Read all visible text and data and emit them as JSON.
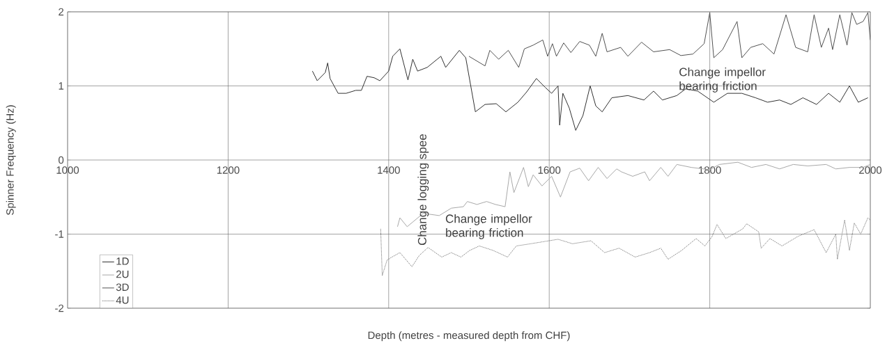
{
  "chart_data": {
    "type": "line",
    "xlabel": "Depth (metres - measured depth from CHF)",
    "ylabel": "Spinner Frequency (Hz)",
    "xlim": [
      1000,
      2000
    ],
    "ylim": [
      -2,
      2
    ],
    "xticks": [
      1000,
      1200,
      1400,
      1600,
      1800,
      2000
    ],
    "yticks": [
      -2,
      -1,
      0,
      1,
      2
    ],
    "grid": true,
    "legend": "bottom left",
    "marker": "none",
    "annotations": [
      "Change impellor bearing friction",
      "Change impellor bearing friction",
      "Change logging spee"
    ],
    "series": [
      {
        "name": "1D",
        "color": "#303030",
        "line_style": "solid",
        "x": [
          1305,
          1311,
          1321,
          1324,
          1327,
          1337,
          1347,
          1359,
          1366,
          1373,
          1382,
          1389,
          1400,
          1405,
          1414,
          1424,
          1430,
          1436,
          1448,
          1465,
          1471,
          1488,
          1496,
          1508,
          1520,
          1534,
          1546,
          1561,
          1572,
          1584,
          1595,
          1603,
          1611,
          1613,
          1617,
          1625,
          1633,
          1642,
          1651,
          1658,
          1666,
          1678,
          1698,
          1718,
          1730,
          1741,
          1759,
          1770,
          1785,
          1805,
          1822,
          1840,
          1857,
          1872,
          1887,
          1901,
          1916,
          1933,
          1948,
          1962,
          1974,
          1985,
          1997
        ],
        "values": [
          1.2,
          1.07,
          1.18,
          1.31,
          1.1,
          0.9,
          0.9,
          0.94,
          0.94,
          1.13,
          1.11,
          1.07,
          1.2,
          1.4,
          1.5,
          1.08,
          1.36,
          1.2,
          1.25,
          1.4,
          1.25,
          1.48,
          1.38,
          0.65,
          0.75,
          0.76,
          0.65,
          0.78,
          0.92,
          1.1,
          0.98,
          0.9,
          1.0,
          0.47,
          0.9,
          0.7,
          0.4,
          0.6,
          1.0,
          0.73,
          0.65,
          0.84,
          0.87,
          0.81,
          0.93,
          0.81,
          0.87,
          0.96,
          0.93,
          0.78,
          0.9,
          0.9,
          0.84,
          0.78,
          0.81,
          0.75,
          0.84,
          0.75,
          0.9,
          0.78,
          1.0,
          0.78,
          0.84
        ]
      },
      {
        "name": "2U",
        "color": "#a8a8a8",
        "line_style": "solid",
        "x": [
          1411,
          1414,
          1423,
          1443,
          1463,
          1478,
          1493,
          1498,
          1510,
          1522,
          1533,
          1545,
          1551,
          1556,
          1568,
          1574,
          1580,
          1591,
          1603,
          1614,
          1626,
          1638,
          1649,
          1661,
          1672,
          1684,
          1690,
          1704,
          1719,
          1725,
          1739,
          1748,
          1759,
          1777,
          1800,
          1812,
          1835,
          1852,
          1870,
          1887,
          1904,
          1922,
          1945,
          1957,
          1974,
          1991,
          2000
        ],
        "values": [
          -0.9,
          -0.78,
          -0.9,
          -0.72,
          -0.75,
          -0.65,
          -0.63,
          -0.56,
          -0.6,
          -0.56,
          -0.6,
          -0.63,
          -0.16,
          -0.44,
          -0.1,
          -0.36,
          -0.2,
          -0.35,
          -0.22,
          -0.5,
          -0.16,
          -0.11,
          -0.28,
          -0.1,
          -0.25,
          -0.12,
          -0.16,
          -0.22,
          -0.16,
          -0.28,
          -0.1,
          -0.22,
          -0.06,
          -0.1,
          -0.13,
          -0.06,
          -0.03,
          -0.1,
          -0.06,
          -0.12,
          -0.06,
          -0.08,
          -0.06,
          -0.12,
          -0.1,
          -0.1,
          -0.06
        ]
      },
      {
        "name": "3D",
        "color": "#505050",
        "line_style": "solid",
        "x": [
          1500,
          1520,
          1526,
          1537,
          1549,
          1562,
          1569,
          1580,
          1592,
          1598,
          1604,
          1609,
          1618,
          1627,
          1638,
          1650,
          1658,
          1666,
          1672,
          1689,
          1698,
          1715,
          1730,
          1750,
          1764,
          1779,
          1793,
          1800,
          1805,
          1816,
          1834,
          1840,
          1851,
          1866,
          1880,
          1895,
          1907,
          1922,
          1930,
          1939,
          1948,
          1953,
          1962,
          1971,
          1977,
          1983,
          1991,
          1997,
          2000
        ],
        "values": [
          1.4,
          1.27,
          1.48,
          1.36,
          1.48,
          1.25,
          1.5,
          1.55,
          1.62,
          1.4,
          1.57,
          1.4,
          1.58,
          1.45,
          1.6,
          1.55,
          1.4,
          1.71,
          1.46,
          1.52,
          1.4,
          1.59,
          1.46,
          1.49,
          1.41,
          1.43,
          1.57,
          1.99,
          1.38,
          1.49,
          1.87,
          1.38,
          1.52,
          1.57,
          1.43,
          1.96,
          1.52,
          1.46,
          1.96,
          1.52,
          1.78,
          1.49,
          1.96,
          1.55,
          1.99,
          1.83,
          1.87,
          1.99,
          1.62
        ]
      },
      {
        "name": "4U",
        "color": "#686868",
        "line_style": "dotted",
        "x": [
          1390,
          1392,
          1398,
          1404,
          1414,
          1429,
          1438,
          1449,
          1466,
          1478,
          1490,
          1501,
          1513,
          1530,
          1548,
          1559,
          1577,
          1594,
          1611,
          1629,
          1652,
          1669,
          1687,
          1707,
          1725,
          1739,
          1748,
          1765,
          1783,
          1794,
          1803,
          1809,
          1820,
          1841,
          1846,
          1861,
          1864,
          1875,
          1890,
          1910,
          1930,
          1945,
          1957,
          1959,
          1968,
          1974,
          1980,
          1988,
          1997,
          2000
        ],
        "values": [
          -0.93,
          -1.56,
          -1.35,
          -1.31,
          -1.25,
          -1.44,
          -1.29,
          -1.18,
          -1.31,
          -1.25,
          -1.31,
          -1.22,
          -1.16,
          -1.22,
          -1.31,
          -1.16,
          -1.13,
          -1.1,
          -1.07,
          -1.13,
          -1.09,
          -1.25,
          -1.19,
          -1.31,
          -1.25,
          -1.19,
          -1.34,
          -1.22,
          -1.06,
          -1.16,
          -1.03,
          -0.87,
          -1.06,
          -0.93,
          -0.86,
          -0.97,
          -1.19,
          -1.06,
          -1.16,
          -1.03,
          -0.94,
          -1.25,
          -1.0,
          -1.34,
          -0.81,
          -1.22,
          -0.85,
          -1.0,
          -0.78,
          -0.81
        ]
      }
    ]
  }
}
